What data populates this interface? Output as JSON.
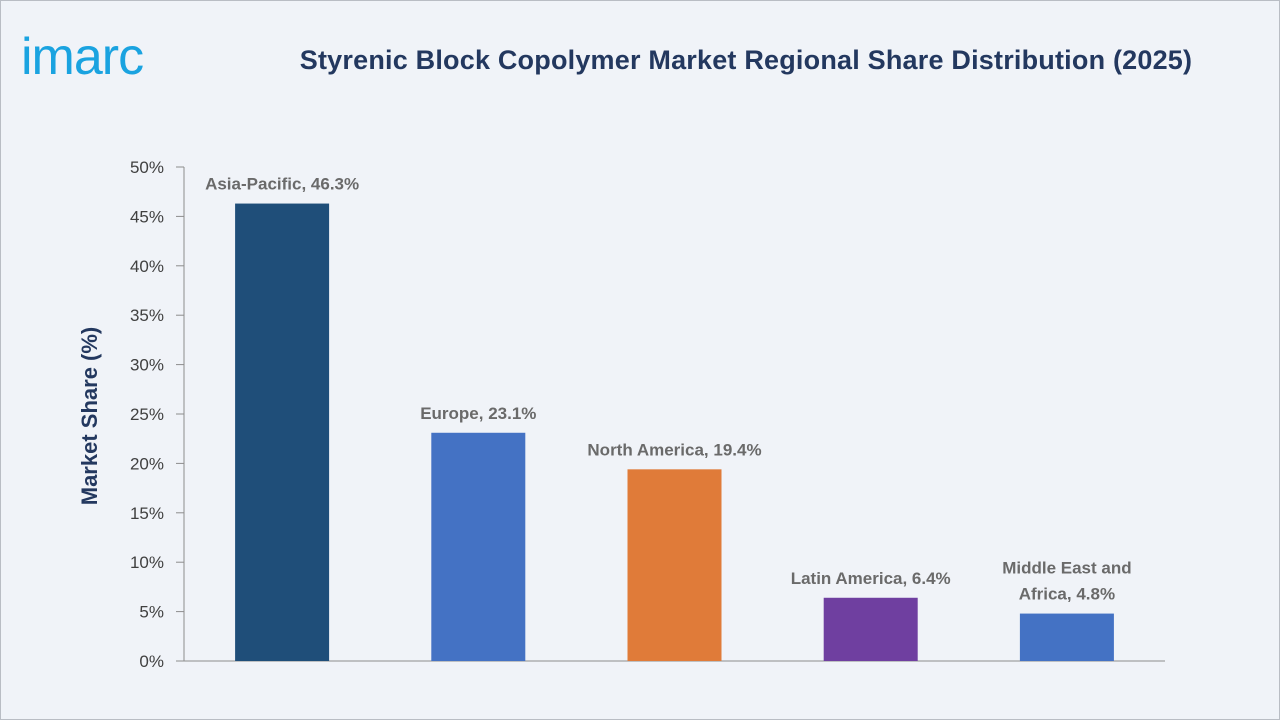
{
  "brand": {
    "logo_text": "imarc",
    "logo_color": "#1aa3e0"
  },
  "chart_data": {
    "type": "bar",
    "title": "Styrenic Block Copolymer Market Regional Share Distribution (2025)",
    "xlabel": "",
    "ylabel": "Market Share (%)",
    "ylim": [
      0,
      50
    ],
    "yticks": [
      0,
      5,
      10,
      15,
      20,
      25,
      30,
      35,
      40,
      45,
      50
    ],
    "ytick_labels": [
      "0%",
      "5%",
      "10%",
      "15%",
      "20%",
      "25%",
      "30%",
      "35%",
      "40%",
      "45%",
      "50%"
    ],
    "grid": false,
    "legend": "none",
    "categories": [
      "Asia-Pacific",
      "Europe",
      "North America",
      "Latin America",
      "Middle East and Africa"
    ],
    "values": [
      46.3,
      23.1,
      19.4,
      6.4,
      4.8
    ],
    "data_labels": [
      [
        "Asia-Pacific, 46.3%"
      ],
      [
        "Europe, 23.1%"
      ],
      [
        "North America, 19.4%"
      ],
      [
        "Latin America, 6.4%"
      ],
      [
        "Middle East and",
        "Africa, 4.8%"
      ]
    ],
    "colors": [
      "#1f4e79",
      "#4472c4",
      "#e07b39",
      "#6f3fa0",
      "#4472c4"
    ]
  }
}
